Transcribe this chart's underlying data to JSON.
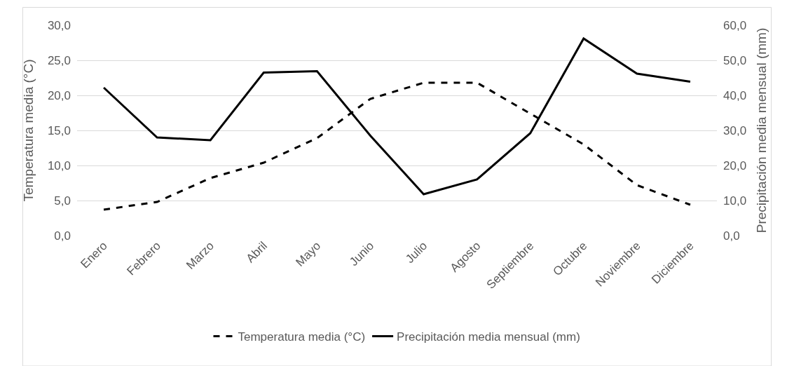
{
  "chart_data": {
    "type": "line",
    "categories": [
      "Enero",
      "Febrero",
      "Marzo",
      "Abril",
      "Mayo",
      "Junio",
      "Julio",
      "Agosto",
      "Septiembre",
      "Octubre",
      "Noviembre",
      "Diciembre"
    ],
    "ylabel": "Temperatura media (°C)",
    "y2label": "Precipitación media mensual (mm)",
    "series": [
      {
        "name": "Temperatura media (°C)",
        "color": "#000000",
        "line_style": "dashed",
        "values": [
          3.7,
          4.8,
          8.2,
          10.4,
          13.9,
          19.5,
          21.8,
          21.8,
          17.4,
          13.0,
          7.2,
          4.4
        ]
      },
      {
        "name": "Precipitación media mensual (mm)",
        "color": "#000000",
        "line_style": "solid",
        "axis": "y2",
        "values": [
          42.2,
          28.0,
          27.2,
          46.5,
          46.9,
          28.5,
          11.8,
          16.0,
          29.2,
          56.2,
          46.2,
          43.9
        ]
      }
    ],
    "ylim": [
      0,
      30
    ],
    "yticks": [
      {
        "value": 0,
        "label": "0,0"
      },
      {
        "value": 5,
        "label": "5,0"
      },
      {
        "value": 10,
        "label": "10,0"
      },
      {
        "value": 15,
        "label": "15,0"
      },
      {
        "value": 20,
        "label": "20,0"
      },
      {
        "value": 25,
        "label": "25,0"
      },
      {
        "value": 30,
        "label": "30,0"
      }
    ],
    "y2lim": [
      0,
      60
    ],
    "y2ticks": [
      {
        "value": 0,
        "label": "0,0"
      },
      {
        "value": 10,
        "label": "10,0"
      },
      {
        "value": 20,
        "label": "20,0"
      },
      {
        "value": 30,
        "label": "30,0"
      },
      {
        "value": 40,
        "label": "40,0"
      },
      {
        "value": 50,
        "label": "50,0"
      },
      {
        "value": 60,
        "label": "60,0"
      }
    ],
    "grid": "y",
    "legend": "bottom",
    "marker": "none"
  }
}
